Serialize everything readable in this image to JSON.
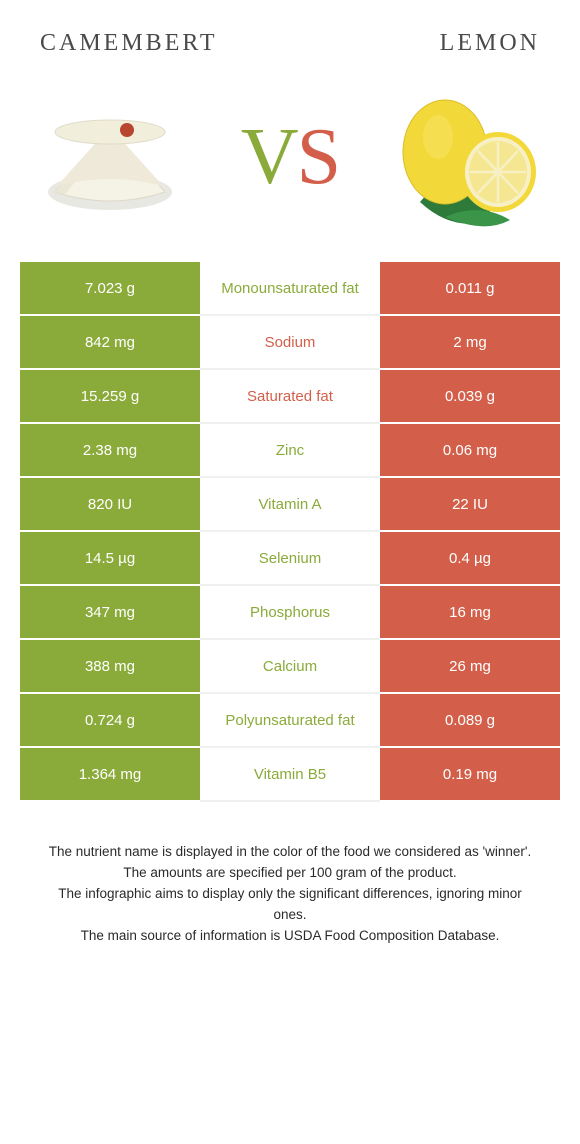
{
  "header": {
    "left_title": "CAMEMBERT",
    "right_title": "LEMON"
  },
  "vs": {
    "v": "V",
    "s": "S"
  },
  "colors": {
    "left_bg": "#8aab3a",
    "right_bg": "#d35f4a",
    "left_text": "#8aab3a",
    "right_text": "#d35f4a",
    "header_text": "#4a4a4a"
  },
  "table": {
    "rows": [
      {
        "left": "7.023 g",
        "label": "Monounsaturated fat",
        "right": "0.011 g",
        "winner": "left"
      },
      {
        "left": "842 mg",
        "label": "Sodium",
        "right": "2 mg",
        "winner": "right"
      },
      {
        "left": "15.259 g",
        "label": "Saturated fat",
        "right": "0.039 g",
        "winner": "right"
      },
      {
        "left": "2.38 mg",
        "label": "Zinc",
        "right": "0.06 mg",
        "winner": "left"
      },
      {
        "left": "820 IU",
        "label": "Vitamin A",
        "right": "22 IU",
        "winner": "left"
      },
      {
        "left": "14.5 µg",
        "label": "Selenium",
        "right": "0.4 µg",
        "winner": "left"
      },
      {
        "left": "347 mg",
        "label": "Phosphorus",
        "right": "16 mg",
        "winner": "left"
      },
      {
        "left": "388 mg",
        "label": "Calcium",
        "right": "26 mg",
        "winner": "left"
      },
      {
        "left": "0.724 g",
        "label": "Polyunsaturated fat",
        "right": "0.089 g",
        "winner": "left"
      },
      {
        "left": "1.364 mg",
        "label": "Vitamin B5",
        "right": "0.19 mg",
        "winner": "left"
      }
    ]
  },
  "footer": {
    "line1": "The nutrient name is displayed in the color of the food we considered as 'winner'.",
    "line2": "The amounts are specified per 100 gram of the product.",
    "line3": "The infographic aims to display only the significant differences, ignoring minor ones.",
    "line4": "The main source of information is USDA Food Composition Database."
  }
}
